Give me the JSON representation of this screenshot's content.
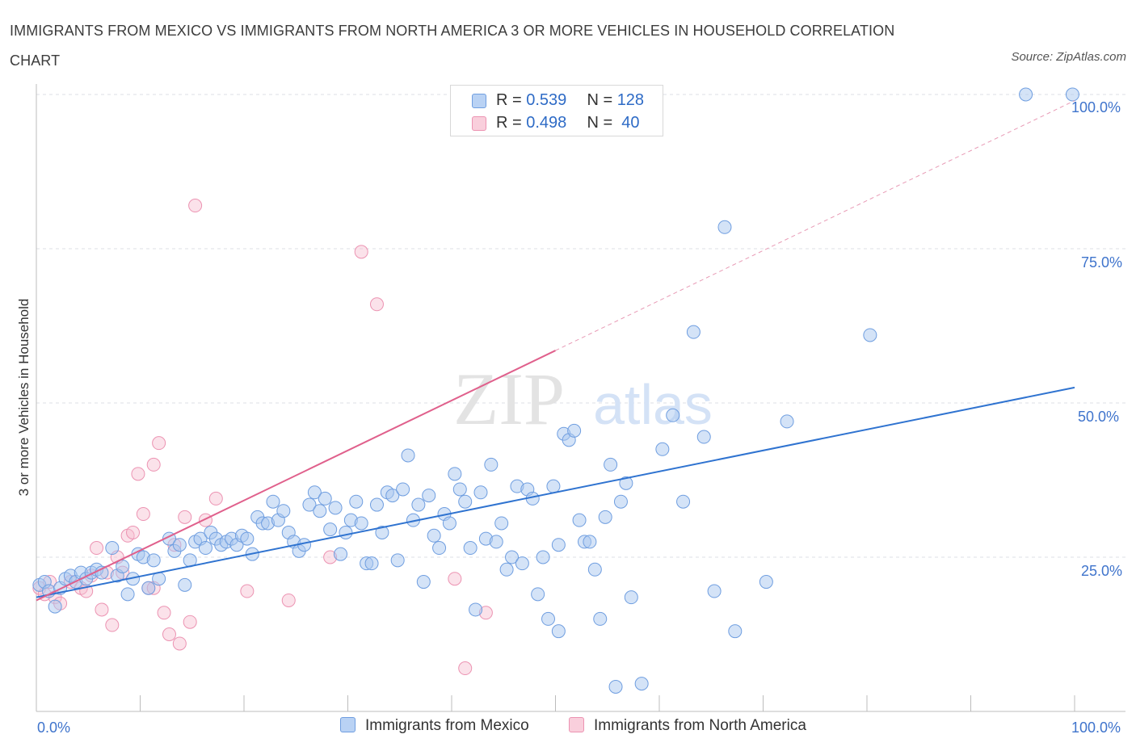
{
  "title": "IMMIGRANTS FROM MEXICO VS IMMIGRANTS FROM NORTH AMERICA 3 OR MORE VEHICLES IN HOUSEHOLD CORRELATION CHART",
  "source": "Source: ZipAtlas.com",
  "watermark": {
    "zip": "ZIP",
    "atlas": "atlas"
  },
  "legend": {
    "rows": [
      {
        "r_label": "R = ",
        "r_value": "0.539",
        "n_label": "N = ",
        "n_value": "128"
      },
      {
        "r_label": "R = ",
        "r_value": "0.498",
        "n_label": "N = ",
        "n_value": " 40"
      }
    ]
  },
  "bottom_legend": {
    "mexico": "Immigrants from Mexico",
    "north_america": "Immigrants from North America"
  },
  "axes": {
    "ylabel": "3 or more Vehicles in Household",
    "x_min_label": "0.0%",
    "x_max_label": "100.0%",
    "y_ticks": [
      "100.0%",
      "75.0%",
      "50.0%",
      "25.0%"
    ]
  },
  "colors": {
    "mexico_fill": "#a9c8f0",
    "mexico_stroke": "#6f9ee0",
    "mexico_line": "#2f73d0",
    "na_fill": "#f6bfd0",
    "na_stroke": "#ec93b2",
    "na_line": "#e0608c",
    "grid": "#dcdfe6",
    "tick_label": "#3f74cc"
  },
  "chart_data": {
    "type": "scatter",
    "xlim": [
      0,
      100
    ],
    "ylim": [
      0,
      100
    ],
    "y_ticks": [
      25,
      50,
      75,
      100
    ],
    "grid": true,
    "series": [
      {
        "name": "Immigrants from Mexico",
        "R": 0.539,
        "N": 128,
        "trend": {
          "x0": 0,
          "y0": 18.5,
          "x1": 100,
          "y1": 52.5
        },
        "points": [
          [
            0.3,
            20.5
          ],
          [
            0.8,
            21.0
          ],
          [
            1.2,
            19.5
          ],
          [
            1.8,
            17.0
          ],
          [
            2.3,
            20.0
          ],
          [
            2.8,
            21.5
          ],
          [
            3.3,
            22.0
          ],
          [
            3.8,
            21.0
          ],
          [
            4.3,
            22.5
          ],
          [
            4.8,
            21.5
          ],
          [
            5.3,
            22.5
          ],
          [
            5.8,
            23.0
          ],
          [
            6.3,
            22.5
          ],
          [
            7.3,
            26.5
          ],
          [
            7.8,
            22.0
          ],
          [
            8.3,
            23.5
          ],
          [
            8.8,
            19.0
          ],
          [
            9.3,
            21.5
          ],
          [
            9.8,
            25.5
          ],
          [
            10.3,
            25.0
          ],
          [
            10.8,
            20.0
          ],
          [
            11.3,
            24.5
          ],
          [
            11.8,
            21.5
          ],
          [
            12.8,
            28.0
          ],
          [
            13.3,
            26.0
          ],
          [
            13.8,
            27.0
          ],
          [
            14.3,
            20.5
          ],
          [
            14.8,
            24.5
          ],
          [
            15.3,
            27.5
          ],
          [
            15.8,
            28.0
          ],
          [
            16.3,
            26.5
          ],
          [
            16.8,
            29.0
          ],
          [
            17.3,
            28.0
          ],
          [
            17.8,
            27.0
          ],
          [
            18.3,
            27.5
          ],
          [
            18.8,
            28.0
          ],
          [
            19.3,
            27.0
          ],
          [
            19.8,
            28.5
          ],
          [
            20.3,
            28.0
          ],
          [
            20.8,
            25.5
          ],
          [
            21.3,
            31.5
          ],
          [
            21.8,
            30.5
          ],
          [
            22.3,
            30.5
          ],
          [
            22.8,
            34.0
          ],
          [
            23.3,
            31.0
          ],
          [
            23.8,
            32.5
          ],
          [
            24.3,
            29.0
          ],
          [
            24.8,
            27.5
          ],
          [
            25.3,
            26.0
          ],
          [
            25.8,
            27.0
          ],
          [
            26.3,
            33.5
          ],
          [
            26.8,
            35.5
          ],
          [
            27.3,
            32.5
          ],
          [
            27.8,
            34.5
          ],
          [
            28.3,
            29.5
          ],
          [
            28.8,
            33.0
          ],
          [
            29.3,
            25.5
          ],
          [
            29.8,
            29.0
          ],
          [
            30.3,
            31.0
          ],
          [
            30.8,
            34.0
          ],
          [
            31.3,
            30.5
          ],
          [
            31.8,
            24.0
          ],
          [
            32.3,
            24.0
          ],
          [
            32.8,
            33.5
          ],
          [
            33.3,
            29.0
          ],
          [
            33.8,
            35.5
          ],
          [
            34.3,
            35.0
          ],
          [
            34.8,
            24.5
          ],
          [
            35.3,
            36.0
          ],
          [
            35.8,
            41.5
          ],
          [
            36.3,
            31.0
          ],
          [
            36.8,
            33.5
          ],
          [
            37.3,
            21.0
          ],
          [
            37.8,
            35.0
          ],
          [
            38.3,
            28.5
          ],
          [
            38.8,
            26.5
          ],
          [
            39.3,
            32.0
          ],
          [
            39.8,
            30.5
          ],
          [
            40.3,
            38.5
          ],
          [
            40.8,
            36.0
          ],
          [
            41.3,
            34.0
          ],
          [
            41.8,
            26.5
          ],
          [
            42.3,
            16.5
          ],
          [
            42.8,
            35.5
          ],
          [
            43.3,
            28.0
          ],
          [
            43.8,
            40.0
          ],
          [
            44.3,
            27.5
          ],
          [
            44.8,
            30.5
          ],
          [
            45.3,
            23.0
          ],
          [
            45.8,
            25.0
          ],
          [
            46.3,
            36.5
          ],
          [
            46.8,
            24.0
          ],
          [
            47.3,
            36.0
          ],
          [
            47.8,
            34.5
          ],
          [
            48.3,
            19.0
          ],
          [
            48.8,
            25.0
          ],
          [
            49.3,
            15.0
          ],
          [
            49.8,
            36.5
          ],
          [
            50.3,
            27.0
          ],
          [
            50.8,
            45.0
          ],
          [
            51.3,
            44.0
          ],
          [
            51.8,
            45.5
          ],
          [
            52.3,
            31.0
          ],
          [
            52.8,
            27.5
          ],
          [
            53.3,
            27.5
          ],
          [
            53.8,
            23.0
          ],
          [
            54.3,
            15.0
          ],
          [
            54.8,
            31.5
          ],
          [
            55.3,
            40.0
          ],
          [
            55.8,
            4.0
          ],
          [
            56.3,
            34.0
          ],
          [
            56.8,
            37.0
          ],
          [
            57.3,
            18.5
          ],
          [
            58.3,
            4.5
          ],
          [
            60.3,
            42.5
          ],
          [
            61.3,
            48.0
          ],
          [
            62.3,
            34.0
          ],
          [
            63.3,
            61.5
          ],
          [
            64.3,
            44.5
          ],
          [
            65.3,
            19.5
          ],
          [
            66.3,
            78.5
          ],
          [
            67.3,
            13.0
          ],
          [
            70.3,
            21.0
          ],
          [
            72.3,
            47.0
          ],
          [
            80.3,
            61.0
          ],
          [
            95.3,
            100.0
          ],
          [
            99.8,
            100.0
          ],
          [
            50.3,
            13.0
          ]
        ]
      },
      {
        "name": "Immigrants from North America",
        "R": 0.498,
        "N": 40,
        "trend_solid": {
          "x0": 0,
          "y0": 18.0,
          "x1": 50,
          "y1": 58.5
        },
        "trend_dashed": {
          "x0": 50,
          "y0": 58.5,
          "x1": 100,
          "y1": 99.0
        },
        "points": [
          [
            0.3,
            20.0
          ],
          [
            0.8,
            19.0
          ],
          [
            1.3,
            21.0
          ],
          [
            1.8,
            18.5
          ],
          [
            2.3,
            17.5
          ],
          [
            3.3,
            21.0
          ],
          [
            4.3,
            20.0
          ],
          [
            4.8,
            19.5
          ],
          [
            5.3,
            22.0
          ],
          [
            5.8,
            26.5
          ],
          [
            6.3,
            16.5
          ],
          [
            6.8,
            22.5
          ],
          [
            7.3,
            14.0
          ],
          [
            7.8,
            25.0
          ],
          [
            8.3,
            22.5
          ],
          [
            8.8,
            28.5
          ],
          [
            9.3,
            29.0
          ],
          [
            9.8,
            38.5
          ],
          [
            10.3,
            32.0
          ],
          [
            10.8,
            20.0
          ],
          [
            11.3,
            40.0
          ],
          [
            11.8,
            43.5
          ],
          [
            12.3,
            16.0
          ],
          [
            12.8,
            12.5
          ],
          [
            13.3,
            27.0
          ],
          [
            13.8,
            11.0
          ],
          [
            14.3,
            31.5
          ],
          [
            14.8,
            14.5
          ],
          [
            15.3,
            82.0
          ],
          [
            16.3,
            31.0
          ],
          [
            17.3,
            34.5
          ],
          [
            20.3,
            19.5
          ],
          [
            24.3,
            18.0
          ],
          [
            28.3,
            25.0
          ],
          [
            31.3,
            74.5
          ],
          [
            32.8,
            66.0
          ],
          [
            40.3,
            21.5
          ],
          [
            41.3,
            7.0
          ],
          [
            43.3,
            16.0
          ],
          [
            11.3,
            20.0
          ]
        ]
      }
    ]
  }
}
